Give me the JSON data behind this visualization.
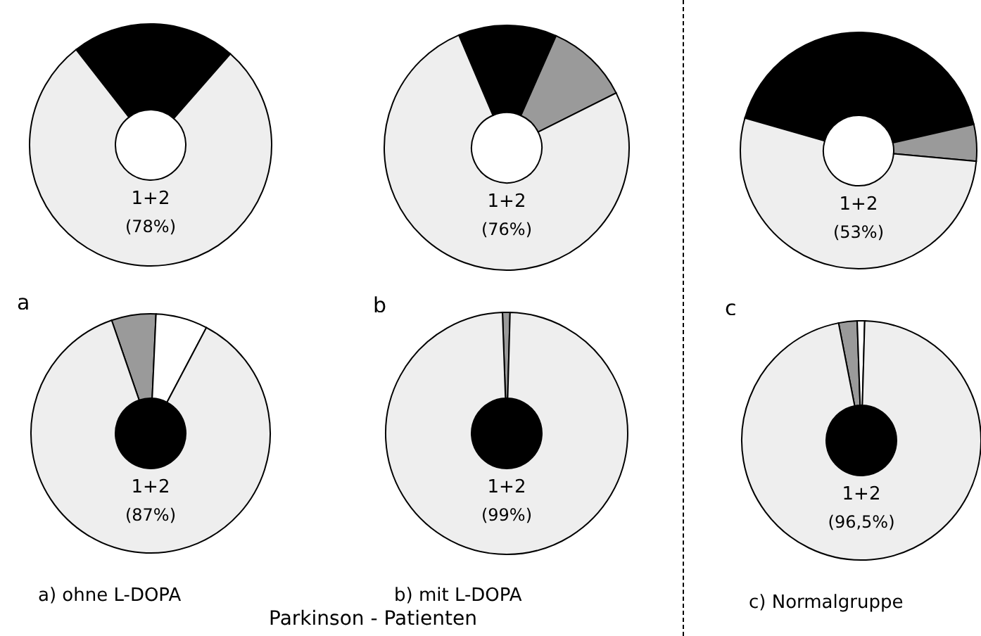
{
  "chart_data": [
    {
      "type": "donut",
      "title": "a",
      "categories": [
        null,
        "1+2"
      ],
      "values": [
        22,
        78
      ],
      "value_labels": [
        null,
        "(78%)"
      ],
      "colors": [
        "#000000",
        "#eeeeee"
      ]
    },
    {
      "type": "donut",
      "title": "b",
      "categories": [
        null,
        null,
        "1+2"
      ],
      "values": [
        13,
        11,
        76
      ],
      "value_labels": [
        null,
        null,
        "(76%)"
      ],
      "colors": [
        "#000000",
        "#9a9a9a",
        "#eeeeee"
      ]
    },
    {
      "type": "donut",
      "title": "c",
      "categories": [
        null,
        null,
        "1+2"
      ],
      "values": [
        42,
        5,
        53
      ],
      "value_labels": [
        null,
        null,
        "(53%)"
      ],
      "colors": [
        "#000000",
        "#9a9a9a",
        "#eeeeee"
      ]
    },
    {
      "type": "donut",
      "title": "a)  ohne  L-DOPA",
      "categories": [
        null,
        null,
        "1+2"
      ],
      "values": [
        6,
        7,
        87
      ],
      "value_labels": [
        null,
        null,
        "(87%)"
      ],
      "colors": [
        "#9a9a9a",
        "#ffffff",
        "#eeeeee"
      ],
      "annotations": [
        "Parkinson - Patienten"
      ]
    },
    {
      "type": "donut",
      "title": "b)   mit  L-DOPA",
      "categories": [
        null,
        "1+2"
      ],
      "values": [
        1,
        99
      ],
      "value_labels": [
        null,
        "(99%)"
      ],
      "colors": [
        "#9a9a9a",
        "#eeeeee"
      ]
    },
    {
      "type": "donut",
      "title": "c)  Normalgruppe",
      "categories": [
        null,
        null,
        "1+2"
      ],
      "values": [
        2.5,
        1,
        96.5
      ],
      "value_labels": [
        null,
        null,
        "(96,5%)"
      ],
      "colors": [
        "#9a9a9a",
        "#ffffff",
        "#eeeeee"
      ]
    }
  ]
}
